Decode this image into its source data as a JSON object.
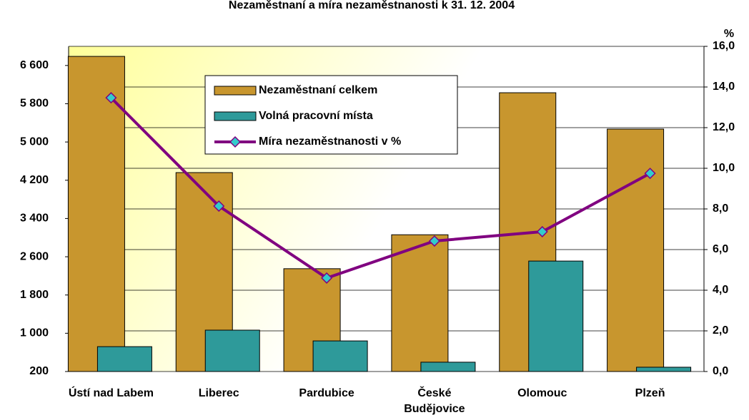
{
  "chart_data": {
    "type": "bar",
    "title": "Nezaměstnaní a míra nezaměstnanosti k 31. 12. 2004",
    "y2_label": "%",
    "categories": [
      "Ústí nad Labem",
      "Liberec",
      "Pardubice",
      "České Budějovice",
      "Olomouc",
      "Plzeň"
    ],
    "series": [
      {
        "name": "Nezaměstnaní celkem",
        "color": "#c8962e",
        "values": [
          6790,
          4360,
          2350,
          3060,
          6030,
          5270
        ]
      },
      {
        "name": "Volná pracovní místa",
        "color": "#2e9a9a",
        "values": [
          720,
          1065,
          840,
          395,
          2510,
          290
        ]
      },
      {
        "name": "Míra nezaměstnanosti v %",
        "color": "#800080",
        "marker_color": "#33cccc",
        "axis": "y2",
        "type": "line",
        "values": [
          13.47,
          8.14,
          4.6,
          6.42,
          6.88,
          9.75
        ]
      }
    ],
    "ylim": [
      200,
      7000
    ],
    "yticks": [
      200,
      {
        "value": 1000,
        "label": "1 000"
      },
      {
        "value": 1800,
        "label": "1 800"
      },
      {
        "value": 2600,
        "label": "2 600"
      },
      {
        "value": 3400,
        "label": "3 400"
      },
      {
        "value": 4200,
        "label": "4 200"
      },
      {
        "value": 5000,
        "label": "5 000"
      },
      {
        "value": 5800,
        "label": "5 800"
      },
      {
        "value": 6600,
        "label": "6 600"
      }
    ],
    "y2lim": [
      0,
      16
    ],
    "y2ticks": [
      {
        "value": 0,
        "label": "0,0"
      },
      {
        "value": 2,
        "label": "2,0"
      },
      {
        "value": 4,
        "label": "4,0"
      },
      {
        "value": 6,
        "label": "6,0"
      },
      {
        "value": 8,
        "label": "8,0"
      },
      {
        "value": 10,
        "label": "10,0"
      },
      {
        "value": 12,
        "label": "12,0"
      },
      {
        "value": 14,
        "label": "14,0"
      },
      {
        "value": 16,
        "label": "16,0"
      }
    ],
    "grid": true
  }
}
